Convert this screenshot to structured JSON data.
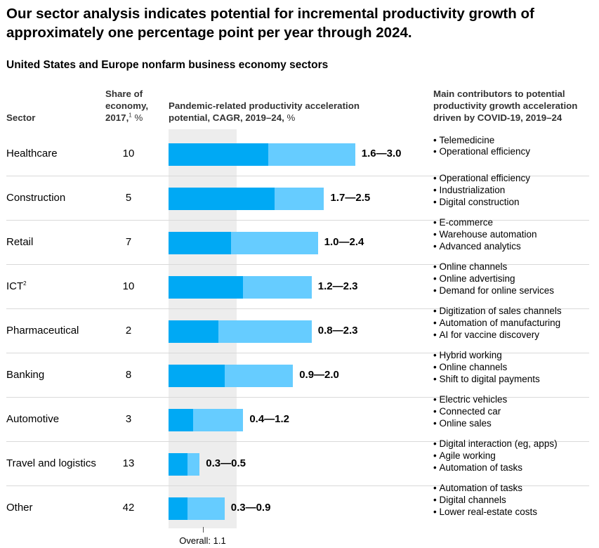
{
  "title": "Our sector analysis indicates potential for incremental productivity growth of approximately one percentage point per year through 2024.",
  "subtitle": "United States and Europe nonfarm business economy sectors",
  "headers": {
    "sector": "Sector",
    "share": "Share of economy, 2017,",
    "share_note": "1",
    "share_unit": "%",
    "acceleration": "Pandemic-related productivity acceleration potential, CAGR, 2019–24,",
    "acceleration_unit": "%",
    "contributors": "Main contributors to potential productivity growth acceleration driven by COVID-19, 2019–24"
  },
  "chart_data": {
    "type": "bar",
    "title": "Our sector analysis indicates potential for incremental productivity growth of approximately one percentage point per year through 2024.",
    "xlabel": "Pandemic-related productivity acceleration potential, CAGR, 2019–24, %",
    "categories": [
      "Healthcare",
      "Construction",
      "Retail",
      "ICT",
      "Pharmaceutical",
      "Banking",
      "Automotive",
      "Travel and logistics",
      "Other"
    ],
    "category_notes": [
      "",
      "",
      "",
      "2",
      "",
      "",
      "",
      "",
      ""
    ],
    "series": [
      {
        "name": "Low",
        "values": [
          1.6,
          1.7,
          1.0,
          1.2,
          0.8,
          0.9,
          0.4,
          0.3,
          0.3
        ]
      },
      {
        "name": "High",
        "values": [
          3.0,
          2.5,
          2.4,
          2.3,
          2.3,
          2.0,
          1.2,
          0.5,
          0.9
        ]
      }
    ],
    "range_labels": [
      "1.6—3.0",
      "1.7—2.5",
      "1.0—2.4",
      "1.2—2.3",
      "0.8—2.3",
      "0.9—2.0",
      "0.4—1.2",
      "0.3—0.5",
      "0.3—0.9"
    ],
    "share_of_economy": [
      "10",
      "5",
      "7",
      "10",
      "2",
      "8",
      "3",
      "13",
      "42"
    ],
    "overall_value": 1.1,
    "overall_label": "Overall: 1.1",
    "colors": {
      "low": "#00a9f4",
      "high": "#66ccff",
      "overall_band": "#ededed"
    }
  },
  "contributors": [
    [
      "Telemedicine",
      "Operational efficiency"
    ],
    [
      "Operational efficiency",
      "Industrialization",
      "Digital construction"
    ],
    [
      "E-commerce",
      "Warehouse automation",
      "Advanced analytics"
    ],
    [
      "Online channels",
      "Online advertising",
      "Demand for online services"
    ],
    [
      "Digitization of sales channels",
      "Automation of manufacturing",
      "AI for vaccine discovery"
    ],
    [
      "Hybrid working",
      "Online channels",
      "Shift to digital payments"
    ],
    [
      "Electric vehicles",
      "Connected car",
      "Online sales"
    ],
    [
      "Digital interaction (eg, apps)",
      "Agile working",
      "Automation of tasks"
    ],
    [
      "Automation of tasks",
      "Digital channels",
      "Lower real-estate costs"
    ]
  ]
}
